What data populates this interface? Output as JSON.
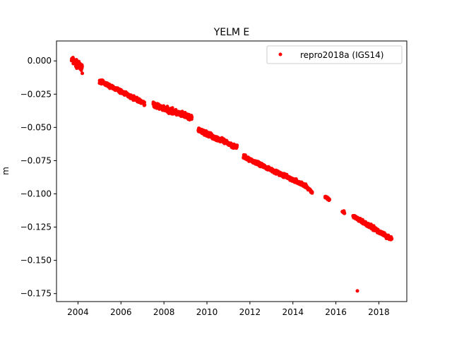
{
  "chart_data": {
    "type": "scatter",
    "title": "YELM E",
    "xlabel": "",
    "ylabel": "m",
    "xlim": [
      2003.0,
      2019.3
    ],
    "ylim": [
      -0.181,
      0.015
    ],
    "x_ticks": [
      2004,
      2006,
      2008,
      2010,
      2012,
      2014,
      2016,
      2018
    ],
    "x_tick_labels": [
      "2004",
      "2006",
      "2008",
      "2010",
      "2012",
      "2014",
      "2016",
      "2018"
    ],
    "y_ticks": [
      0.0,
      -0.025,
      -0.05,
      -0.075,
      -0.1,
      -0.125,
      -0.15,
      -0.175
    ],
    "y_tick_labels": [
      "0.000",
      "−0.025",
      "−0.050",
      "−0.075",
      "−0.100",
      "−0.125",
      "−0.150",
      "−0.175"
    ],
    "grid": false,
    "legend_position": "top-right",
    "series": [
      {
        "name": "repro2018a (IGS14)",
        "color": "#ff0000",
        "marker": "circle",
        "segments": [
          {
            "x": [
              2003.7,
              2004.2
            ],
            "y": [
              0.001,
              -0.006
            ],
            "spread": 0.004
          },
          {
            "x": [
              2005.0,
              2007.1
            ],
            "y": [
              -0.015,
              -0.032
            ],
            "spread": 0.002
          },
          {
            "x": [
              2007.5,
              2009.3
            ],
            "y": [
              -0.033,
              -0.043
            ],
            "spread": 0.003
          },
          {
            "x": [
              2009.6,
              2011.4
            ],
            "y": [
              -0.052,
              -0.065
            ],
            "spread": 0.0025
          },
          {
            "x": [
              2011.7,
              2014.6
            ],
            "y": [
              -0.072,
              -0.094
            ],
            "spread": 0.002
          },
          {
            "x": [
              2014.5,
              2014.9
            ],
            "y": [
              -0.093,
              -0.099
            ],
            "spread": 0.0015
          },
          {
            "x": [
              2015.5,
              2015.7
            ],
            "y": [
              -0.102,
              -0.104
            ],
            "spread": 0.0015
          },
          {
            "x": [
              2016.3,
              2016.4
            ],
            "y": [
              -0.113,
              -0.114
            ],
            "spread": 0.0012
          },
          {
            "x": [
              2016.8,
              2018.6
            ],
            "y": [
              -0.117,
              -0.134
            ],
            "spread": 0.0022
          }
        ],
        "outliers": [
          {
            "x": 2017.0,
            "y": -0.173
          }
        ]
      }
    ]
  }
}
